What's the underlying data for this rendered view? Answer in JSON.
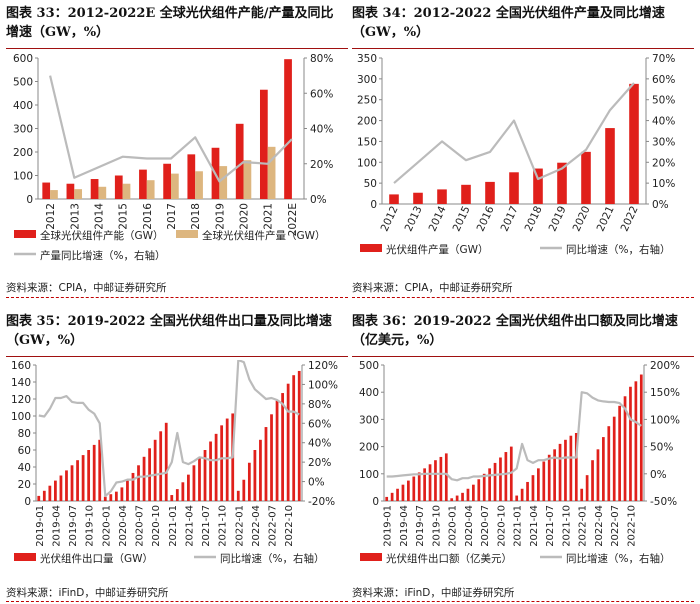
{
  "colors": {
    "red": "#e0201b",
    "tan": "#ddb67f",
    "gray": "#bbbbbb",
    "axis": "#888888",
    "titleRule": "#a01010"
  },
  "chart_data": [
    {
      "id": "c33",
      "type": "bar",
      "title_line1": "图表 33：2012-2022E 全球光伏组件产能/产量及同比",
      "title_line2": "增速（GW，%）",
      "categories": [
        "2012",
        "2013",
        "2014",
        "2015",
        "2016",
        "2017",
        "2018",
        "2019",
        "2020",
        "2021",
        "2022E"
      ],
      "series": [
        {
          "name": "全球光伏组件产能（GW）",
          "kind": "bar",
          "color": "#e0201b",
          "values": [
            70,
            65,
            85,
            100,
            125,
            150,
            190,
            218,
            320,
            465,
            595
          ]
        },
        {
          "name": "全球光伏组件产量（GW）",
          "kind": "bar",
          "color": "#ddb67f",
          "values": [
            38,
            42,
            52,
            65,
            80,
            108,
            118,
            140,
            165,
            222,
            null
          ]
        },
        {
          "name": "产量同比增速（%，右轴）",
          "kind": "line",
          "axis": "right",
          "color": "#bbbbbb",
          "values": [
            70,
            12,
            18,
            24,
            23,
            23,
            35,
            10,
            21,
            20,
            34
          ]
        }
      ],
      "ylim": [
        0,
        600
      ],
      "yticks": [
        0,
        100,
        200,
        300,
        400,
        500,
        600
      ],
      "y2lim": [
        0,
        80
      ],
      "y2ticks": [
        "0%",
        "20%",
        "40%",
        "60%",
        "80%"
      ],
      "legend_rows": [
        [
          {
            "name": "全球光伏组件产能（GW）",
            "kind": "bar",
            "color": "#e0201b"
          },
          {
            "name": "全球光伏组件产量（GW）",
            "kind": "bar",
            "color": "#ddb67f"
          }
        ],
        [
          {
            "name": "产量同比增速（%，右轴）",
            "kind": "line",
            "color": "#bbbbbb"
          }
        ]
      ],
      "source": "资料来源：CPIA，中邮证券研究所"
    },
    {
      "id": "c34",
      "type": "bar",
      "title_line1": "图表  34：2012-2022 全国光伏组件产量及同比增速",
      "title_line2": "（GW，%）",
      "categories": [
        "2012",
        "2013",
        "2014",
        "2015",
        "2016",
        "2017",
        "2018",
        "2019",
        "2020",
        "2021",
        "2022"
      ],
      "series": [
        {
          "name": "光伏组件产量（GW）",
          "kind": "bar",
          "color": "#e0201b",
          "values": [
            23,
            27,
            35,
            46,
            53,
            76,
            85,
            99,
            125,
            182,
            288
          ]
        },
        {
          "name": "同比增速（%，右轴）",
          "kind": "line",
          "axis": "right",
          "color": "#bbbbbb",
          "values": [
            10,
            20,
            30,
            21,
            25,
            40,
            12,
            17,
            26,
            45,
            58
          ]
        }
      ],
      "ylim": [
        0,
        350
      ],
      "yticks": [
        0,
        50,
        100,
        150,
        200,
        250,
        300,
        350
      ],
      "y2lim": [
        0,
        70
      ],
      "y2ticks": [
        "0%",
        "10%",
        "20%",
        "30%",
        "40%",
        "50%",
        "60%",
        "70%"
      ],
      "legend_rows": [
        [
          {
            "name": "光伏组件产量（GW）",
            "kind": "bar",
            "color": "#e0201b"
          },
          {
            "name": "同比增速（%，右轴）",
            "kind": "line",
            "color": "#bbbbbb"
          }
        ]
      ],
      "source": "资料来源：CPIA，中邮证券研究所"
    },
    {
      "id": "c35",
      "type": "bar",
      "title_line1": "图表 35：2019-2022 全国光伏组件出口量及同比增速",
      "title_line2": "（GW，%）",
      "xticks": [
        "2019-01",
        "2019-04",
        "2019-07",
        "2019-10",
        "2020-01",
        "2020-04",
        "2020-07",
        "2020-10",
        "2021-01",
        "2021-04",
        "2021-07",
        "2021-10",
        "2022-01",
        "2022-04",
        "2022-07",
        "2022-10"
      ],
      "series": [
        {
          "name": "光伏组件出口量（GW）",
          "kind": "bar",
          "color": "#e0201b",
          "values": [
            6,
            12,
            18,
            24,
            30,
            36,
            42,
            48,
            54,
            60,
            66,
            72,
            5,
            8,
            11,
            16,
            24,
            33,
            42,
            52,
            62,
            72,
            82,
            92,
            7,
            14,
            22,
            31,
            42,
            50,
            60,
            70,
            79,
            89,
            97,
            103,
            12,
            25,
            45,
            60,
            72,
            87,
            102,
            118,
            127,
            138,
            148,
            153
          ]
        },
        {
          "name": "同比增速（%，右轴）",
          "kind": "line",
          "axis": "right",
          "color": "#bbbbbb",
          "values": [
            68,
            67,
            75,
            86,
            86,
            88,
            82,
            81,
            81,
            74,
            70,
            60,
            -15,
            -10,
            -1,
            0,
            2,
            2,
            5,
            5,
            6,
            7,
            8,
            9,
            20,
            50,
            20,
            18,
            21,
            25,
            24,
            22,
            22,
            24,
            24,
            25,
            125,
            123,
            105,
            95,
            90,
            85,
            86,
            84,
            80,
            72,
            72,
            69
          ]
        }
      ],
      "ylim": [
        0,
        160
      ],
      "yticks": [
        0,
        20,
        40,
        60,
        80,
        100,
        120,
        140,
        160
      ],
      "y2lim": [
        -20,
        120
      ],
      "y2ticks": [
        "-20%",
        "0%",
        "20%",
        "40%",
        "60%",
        "80%",
        "100%",
        "120%"
      ],
      "legend_rows": [
        [
          {
            "name": "光伏组件出口量（GW）",
            "kind": "bar",
            "color": "#e0201b"
          },
          {
            "name": "同比增速（%，右轴）",
            "kind": "line",
            "color": "#bbbbbb"
          }
        ]
      ],
      "source": "资料来源：iFinD，中邮证券研究所"
    },
    {
      "id": "c36",
      "type": "bar",
      "title_line1": "图表 36：2019-2022 全国光伏组件出口额及同比增速",
      "title_line2": "（亿美元，%）",
      "xticks": [
        "2019-01",
        "2019-04",
        "2019-07",
        "2019-10",
        "2020-01",
        "2020-04",
        "2020-07",
        "2020-10",
        "2021-01",
        "2021-04",
        "2021-07",
        "2021-10",
        "2022-01",
        "2022-04",
        "2022-07",
        "2022-10"
      ],
      "series": [
        {
          "name": "光伏组件出口额（亿美元）",
          "kind": "bar",
          "color": "#e0201b",
          "values": [
            15,
            30,
            45,
            60,
            75,
            90,
            105,
            120,
            135,
            150,
            162,
            175,
            10,
            20,
            30,
            45,
            60,
            80,
            100,
            120,
            140,
            160,
            180,
            200,
            20,
            45,
            70,
            95,
            120,
            145,
            170,
            190,
            210,
            225,
            240,
            250,
            45,
            95,
            150,
            190,
            235,
            275,
            310,
            350,
            385,
            420,
            440,
            465
          ]
        },
        {
          "name": "同比增速（%，右轴）",
          "kind": "line",
          "axis": "right",
          "color": "#bbbbbb",
          "values": [
            -5,
            -5,
            -4,
            -3,
            -2,
            -1,
            -1,
            0,
            0,
            0,
            0,
            0,
            -10,
            -12,
            -8,
            -8,
            -5,
            -5,
            -4,
            -3,
            -2,
            -1,
            0,
            2,
            10,
            55,
            25,
            20,
            25,
            25,
            28,
            30,
            28,
            30,
            30,
            30,
            150,
            148,
            140,
            135,
            133,
            132,
            132,
            130,
            120,
            100,
            95,
            88
          ]
        }
      ],
      "ylim": [
        0,
        500
      ],
      "yticks": [
        0,
        100,
        200,
        300,
        400,
        500
      ],
      "y2lim": [
        -50,
        200
      ],
      "y2ticks": [
        "-50%",
        "0%",
        "50%",
        "100%",
        "150%",
        "200%"
      ],
      "legend_rows": [
        [
          {
            "name": "光伏组件出口额（亿美元）",
            "kind": "bar",
            "color": "#e0201b"
          },
          {
            "name": "同比增速（%，右轴）",
            "kind": "line",
            "color": "#bbbbbb"
          }
        ]
      ],
      "source": "资料来源：iFinD，中邮证券研究所"
    }
  ]
}
